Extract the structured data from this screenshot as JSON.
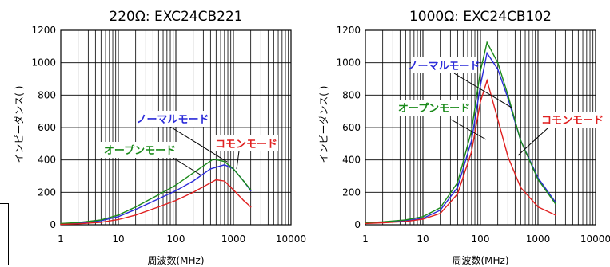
{
  "colors": {
    "normal": "#2b2bd9",
    "open": "#1a8a1a",
    "common": "#e02020",
    "grid": "#000000"
  },
  "chart_data": [
    {
      "type": "line",
      "title": "220Ω: EXC24CB221",
      "xlabel": "周波数(MHz)",
      "ylabel": "インピーダンス(  )",
      "xscale": "log",
      "xlim": [
        1,
        10000
      ],
      "ylim": [
        0,
        1200
      ],
      "xticks": [
        "1",
        "10",
        "100",
        "1000",
        "10000"
      ],
      "yticks": [
        "0",
        "200",
        "400",
        "600",
        "800",
        "1000",
        "1200"
      ],
      "grid": true,
      "series": [
        {
          "name": "ノーマルモード",
          "color": "#2b2bd9",
          "x": [
            1,
            2,
            5,
            10,
            20,
            50,
            100,
            200,
            400,
            700,
            1000,
            1500,
            2000
          ],
          "y": [
            5,
            10,
            25,
            50,
            95,
            160,
            210,
            270,
            345,
            370,
            345,
            270,
            210
          ]
        },
        {
          "name": "オープンモード",
          "color": "#1a8a1a",
          "x": [
            1,
            2,
            5,
            10,
            20,
            50,
            100,
            200,
            450,
            700,
            1000,
            1500,
            2000
          ],
          "y": [
            8,
            14,
            30,
            60,
            110,
            185,
            245,
            320,
            405,
            390,
            345,
            270,
            215
          ]
        },
        {
          "name": "コモンモード",
          "color": "#e02020",
          "x": [
            1,
            2,
            5,
            10,
            20,
            50,
            100,
            200,
            500,
            700,
            1000,
            1500,
            2000
          ],
          "y": [
            3,
            6,
            15,
            32,
            60,
            110,
            150,
            200,
            278,
            270,
            215,
            150,
            110
          ]
        }
      ],
      "annotations": [
        {
          "text": "ノーマルモード",
          "color": "#2b2bd9"
        },
        {
          "text": "オープンモード",
          "color": "#1a8a1a"
        },
        {
          "text": "コモンモード",
          "color": "#e02020"
        }
      ]
    },
    {
      "type": "line",
      "title": "1000Ω: EXC24CB102",
      "xlabel": "周波数(MHz)",
      "ylabel": "インピーダンス(  )",
      "xscale": "log",
      "xlim": [
        1,
        10000
      ],
      "ylim": [
        0,
        1200
      ],
      "xticks": [
        "1",
        "10",
        "100",
        "1000",
        "10000"
      ],
      "yticks": [
        "0",
        "200",
        "400",
        "600",
        "800",
        "1000",
        "1200"
      ],
      "grid": true,
      "series": [
        {
          "name": "ノーマルモード",
          "color": "#2b2bd9",
          "x": [
            1,
            2,
            5,
            10,
            20,
            40,
            70,
            100,
            130,
            200,
            300,
            500,
            1000,
            2000
          ],
          "y": [
            10,
            15,
            25,
            40,
            90,
            230,
            520,
            860,
            1060,
            960,
            780,
            520,
            290,
            140
          ]
        },
        {
          "name": "オープンモード",
          "color": "#1a8a1a",
          "x": [
            1,
            2,
            5,
            10,
            20,
            40,
            70,
            100,
            130,
            200,
            300,
            500,
            1000,
            2000
          ],
          "y": [
            12,
            18,
            30,
            50,
            105,
            260,
            580,
            950,
            1125,
            1000,
            800,
            520,
            280,
            130
          ]
        },
        {
          "name": "コモンモード",
          "color": "#e02020",
          "x": [
            1,
            2,
            5,
            10,
            20,
            40,
            70,
            100,
            130,
            200,
            300,
            500,
            1000,
            2000
          ],
          "y": [
            8,
            12,
            20,
            35,
            70,
            190,
            450,
            760,
            890,
            650,
            420,
            230,
            110,
            60
          ]
        }
      ],
      "annotations": [
        {
          "text": "ノーマルモード",
          "color": "#2b2bd9"
        },
        {
          "text": "オープンモード",
          "color": "#1a8a1a"
        },
        {
          "text": "コモンモード",
          "color": "#e02020"
        }
      ]
    }
  ]
}
